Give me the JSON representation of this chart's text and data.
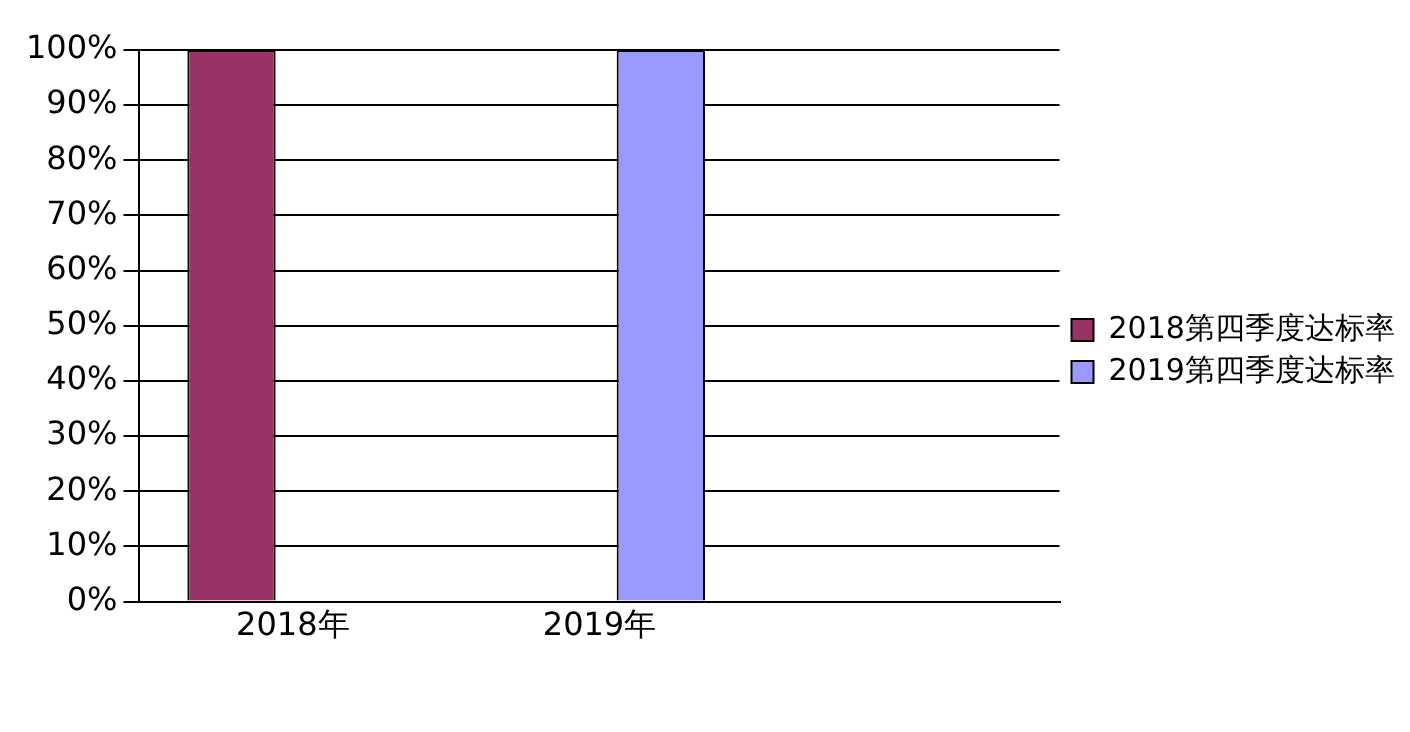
{
  "chart_data": {
    "type": "bar",
    "categories": [
      "2018年",
      "2019年",
      null
    ],
    "series": [
      {
        "name": "2018第四季度达标率",
        "color": "#993366",
        "values": [
          100,
          null,
          null
        ]
      },
      {
        "name": "2019第四季度达标率",
        "color": "#9999ff",
        "values": [
          null,
          100,
          null
        ]
      }
    ],
    "ylim": [
      0,
      100
    ],
    "yticks": [
      {
        "value": 0,
        "label": "0%"
      },
      {
        "value": 10,
        "label": "10%"
      },
      {
        "value": 20,
        "label": "20%"
      },
      {
        "value": 30,
        "label": "30%"
      },
      {
        "value": 40,
        "label": "40%"
      },
      {
        "value": 50,
        "label": "50%"
      },
      {
        "value": 60,
        "label": "60%"
      },
      {
        "value": 70,
        "label": "70%"
      },
      {
        "value": 80,
        "label": "80%"
      },
      {
        "value": 90,
        "label": "90%"
      },
      {
        "value": 100,
        "label": "100%"
      }
    ],
    "grid": "y",
    "legend": "right"
  }
}
